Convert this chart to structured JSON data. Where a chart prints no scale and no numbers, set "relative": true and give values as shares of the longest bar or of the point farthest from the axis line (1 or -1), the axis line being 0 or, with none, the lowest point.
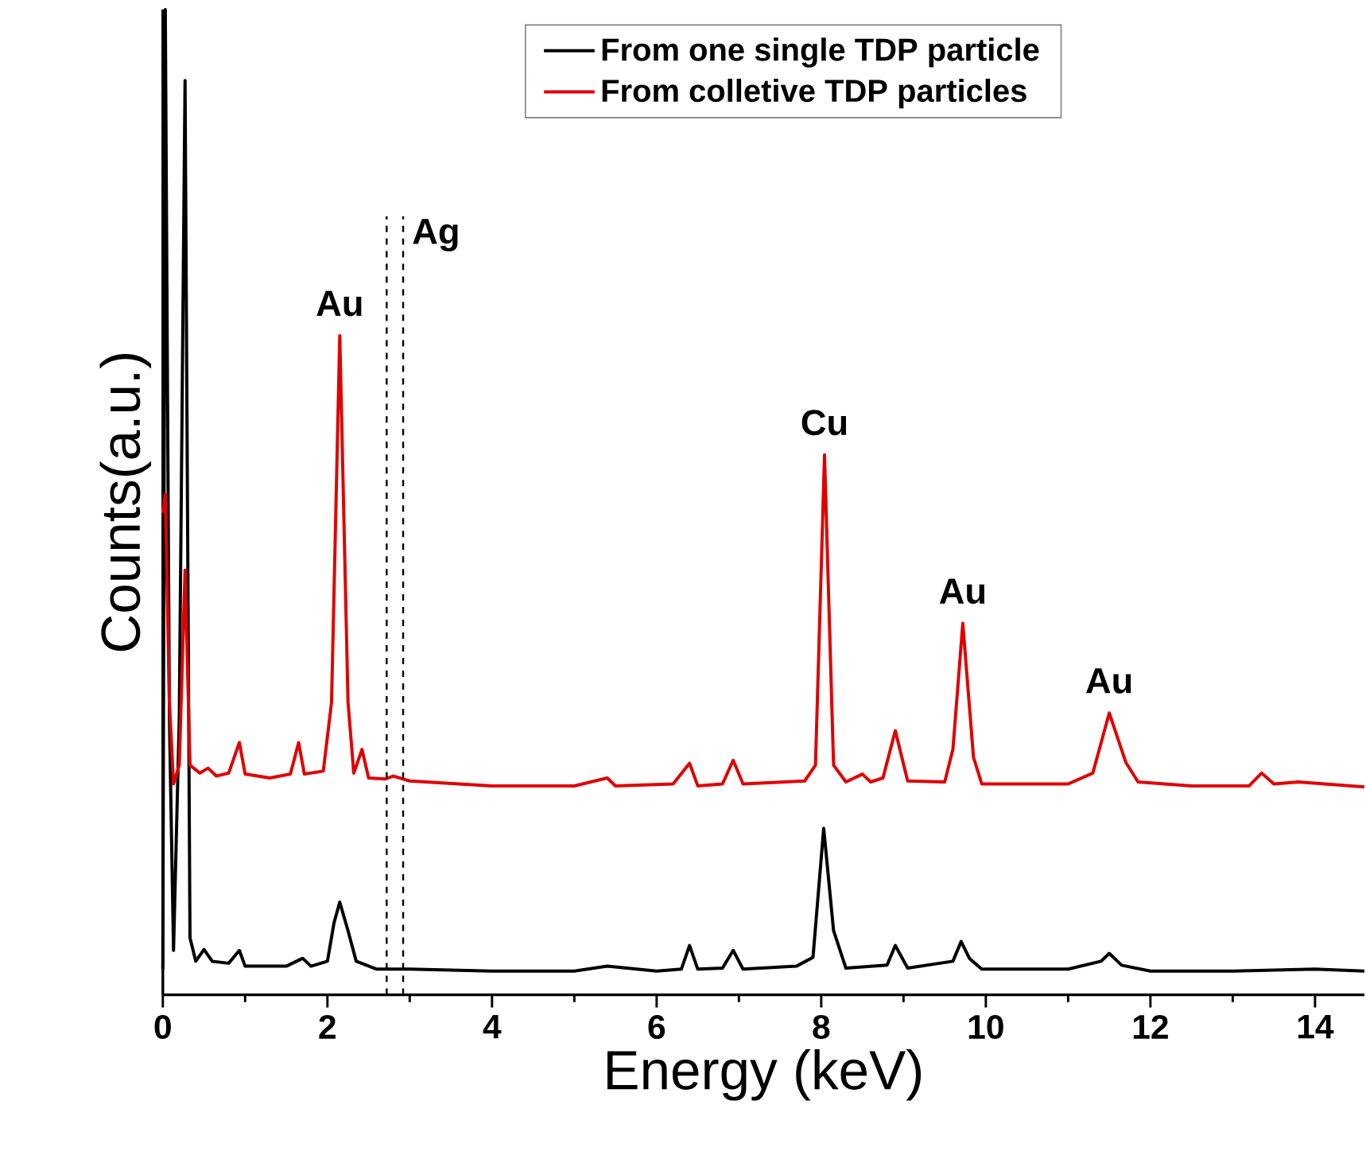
{
  "chart_data": {
    "type": "line",
    "relative": true,
    "xlabel": "Energy (keV)",
    "ylabel": "Counts(a.u.)",
    "xlim": [
      0,
      14.6
    ],
    "xticks": [
      0,
      2,
      4,
      6,
      8,
      10,
      12,
      14
    ],
    "legend": "top",
    "line_style": "solid",
    "marker": "none",
    "series": [
      {
        "name": "From one single TDP particle",
        "color": "#000000",
        "x": [
          0,
          0.03,
          0.08,
          0.13,
          0.2,
          0.27,
          0.33,
          0.4,
          0.5,
          0.6,
          0.8,
          0.93,
          1.0,
          1.5,
          1.7,
          1.8,
          2.0,
          2.08,
          2.15,
          2.25,
          2.35,
          2.6,
          3,
          4,
          5,
          5.4,
          6,
          6.3,
          6.4,
          6.5,
          6.8,
          6.93,
          7.05,
          7.7,
          7.9,
          8.03,
          8.15,
          8.3,
          8.8,
          8.9,
          9.05,
          9.6,
          9.7,
          9.8,
          9.95,
          11,
          11.4,
          11.5,
          11.65,
          12,
          13,
          14,
          14.6
        ],
        "values": [
          0.026,
          1,
          0.281,
          0.045,
          0.281,
          0.928,
          0.058,
          0.034,
          0.046,
          0.034,
          0.032,
          0.045,
          0.029,
          0.029,
          0.037,
          0.029,
          0.034,
          0.073,
          0.094,
          0.065,
          0.034,
          0.026,
          0.026,
          0.024,
          0.024,
          0.029,
          0.024,
          0.026,
          0.05,
          0.026,
          0.027,
          0.045,
          0.026,
          0.029,
          0.038,
          0.169,
          0.065,
          0.027,
          0.03,
          0.05,
          0.027,
          0.034,
          0.054,
          0.037,
          0.026,
          0.026,
          0.034,
          0.042,
          0.03,
          0.024,
          0.024,
          0.026,
          0.024
        ]
      },
      {
        "name": "From colletive TDP particles",
        "color": "#e00000",
        "x": [
          0,
          0.03,
          0.08,
          0.13,
          0.2,
          0.27,
          0.33,
          0.45,
          0.55,
          0.65,
          0.8,
          0.93,
          1.0,
          1.3,
          1.55,
          1.65,
          1.72,
          1.95,
          2.05,
          2.15,
          2.25,
          2.32,
          2.42,
          2.5,
          2.7,
          2.8,
          3.0,
          4,
          5,
          5.4,
          5.5,
          6.2,
          6.4,
          6.5,
          6.8,
          6.93,
          7.05,
          7.8,
          7.93,
          8.04,
          8.15,
          8.3,
          8.5,
          8.6,
          8.75,
          8.9,
          9.05,
          9.5,
          9.6,
          9.72,
          9.85,
          9.95,
          10.5,
          11.0,
          11.3,
          11.5,
          11.7,
          11.85,
          12.5,
          13.2,
          13.35,
          13.5,
          13.8,
          14.6
        ],
        "values": [
          0.489,
          0.508,
          0.297,
          0.214,
          0.233,
          0.431,
          0.233,
          0.225,
          0.23,
          0.222,
          0.225,
          0.256,
          0.224,
          0.22,
          0.224,
          0.256,
          0.224,
          0.227,
          0.297,
          0.669,
          0.297,
          0.225,
          0.249,
          0.22,
          0.219,
          0.222,
          0.217,
          0.212,
          0.212,
          0.22,
          0.212,
          0.214,
          0.235,
          0.212,
          0.214,
          0.238,
          0.214,
          0.217,
          0.233,
          0.548,
          0.233,
          0.216,
          0.224,
          0.216,
          0.22,
          0.268,
          0.217,
          0.216,
          0.249,
          0.377,
          0.241,
          0.214,
          0.214,
          0.214,
          0.225,
          0.286,
          0.236,
          0.216,
          0.212,
          0.212,
          0.225,
          0.214,
          0.216,
          0.211
        ]
      }
    ],
    "ref_lines": [
      {
        "axis": "x",
        "value": 2.72,
        "line_style": "dashed",
        "color": "#000000"
      },
      {
        "axis": "x",
        "value": 2.92,
        "label": "Ag",
        "line_style": "dashed",
        "color": "#000000"
      }
    ],
    "annotations": [
      {
        "text": "Au",
        "x": 2.15,
        "y": 0.669
      },
      {
        "text": "Cu",
        "x": 8.04,
        "y": 0.548
      },
      {
        "text": "Au",
        "x": 9.72,
        "y": 0.377
      },
      {
        "text": "Au",
        "x": 11.5,
        "y": 0.286
      }
    ]
  }
}
